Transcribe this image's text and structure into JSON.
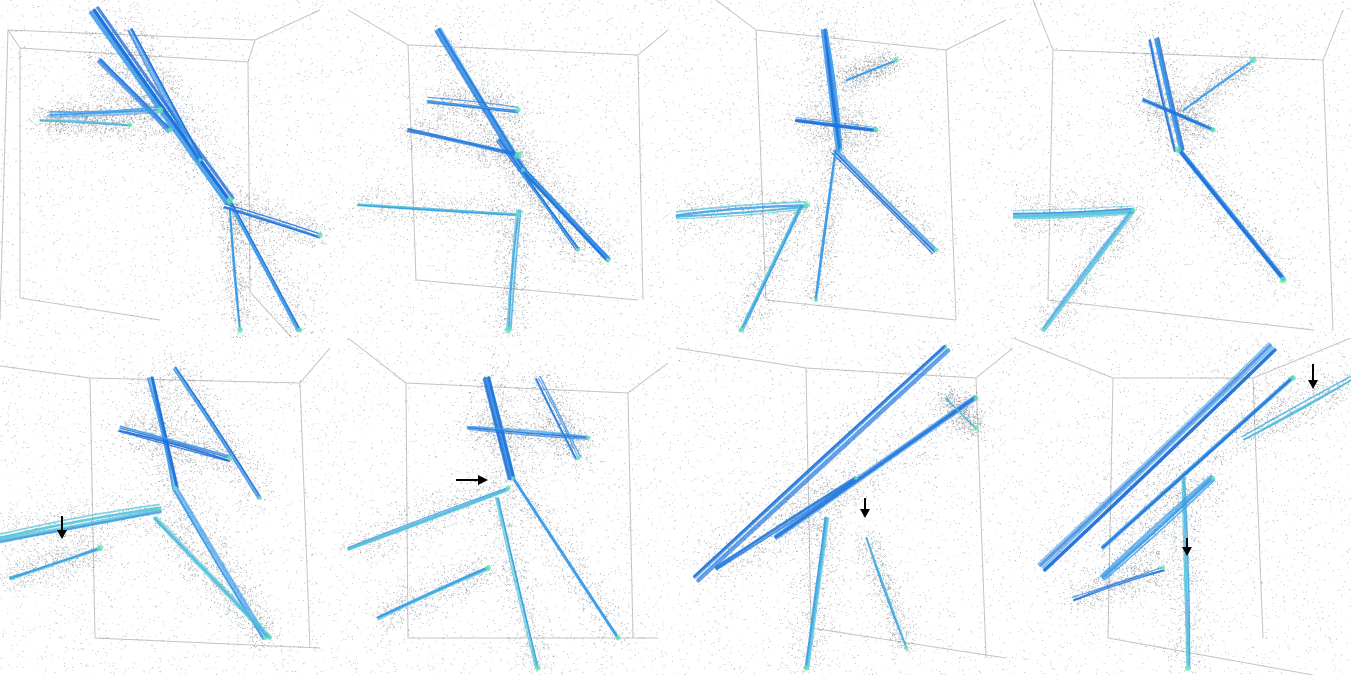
{
  "figure": {
    "panels": [
      {
        "id": "panel-1"
      },
      {
        "id": "panel-2"
      },
      {
        "id": "panel-3"
      },
      {
        "id": "panel-4"
      },
      {
        "id": "panel-5"
      },
      {
        "id": "panel-6"
      },
      {
        "id": "panel-7"
      },
      {
        "id": "panel-8"
      }
    ],
    "colors": {
      "background": "#ffffff",
      "particles_sparse": "#1f2f3a",
      "filament_dense": "#1e6fd9",
      "filament_mid": "#3a9be8",
      "filament_light": "#55c4d8",
      "knot_highlight": "#66e6b0",
      "box_outline": "#bfbfbf",
      "arrow": "#000000"
    },
    "annotation_icons": [
      "down-arrow-icon",
      "right-arrow-icon"
    ]
  }
}
